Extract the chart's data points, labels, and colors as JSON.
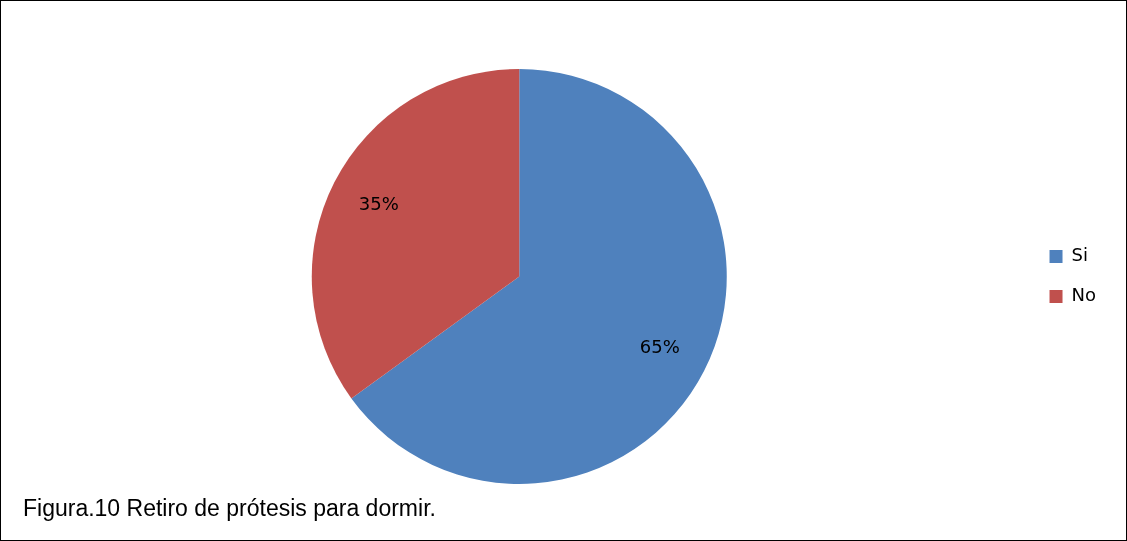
{
  "chart_data": {
    "type": "pie",
    "categories": [
      "Si",
      "No"
    ],
    "values": [
      65,
      35
    ],
    "colors": [
      "#4f81bd",
      "#c0504d"
    ],
    "value_labels": [
      "65%",
      "35%"
    ],
    "legend": "right",
    "annotations": [
      "Figura.10 Retiro de prótesis para dormir."
    ]
  }
}
